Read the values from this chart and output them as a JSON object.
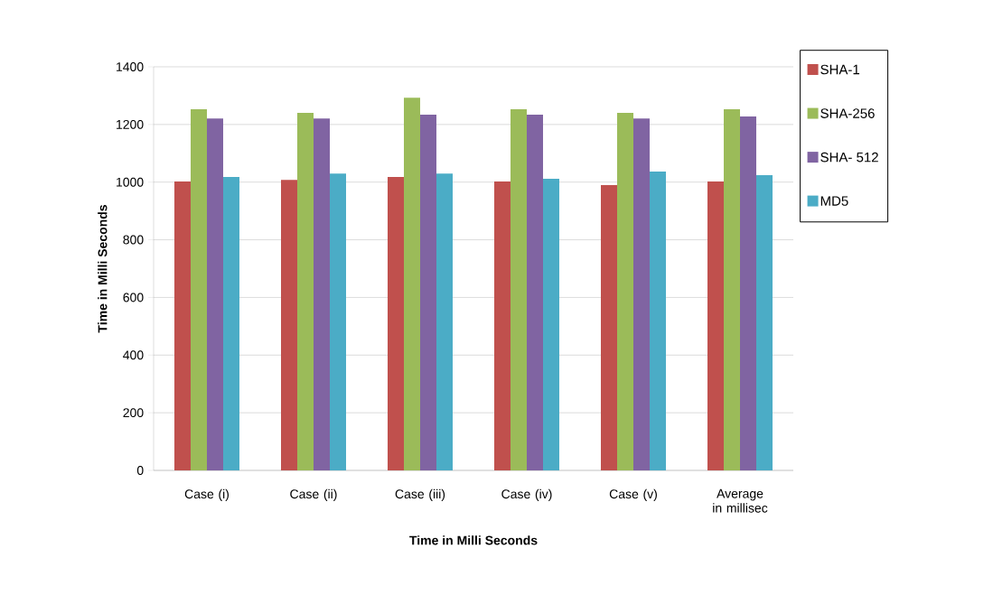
{
  "chart_data": {
    "type": "bar",
    "xlabel": "Time in Milli Seconds",
    "ylabel": "Time in Milli Seconds",
    "categories": [
      "Case (i)",
      "Case (ii)",
      "Case (iii)",
      "Case (iv)",
      "Case (v)",
      "Average in millisec"
    ],
    "series": [
      {
        "name": "SHA-1",
        "color": "#c0504d",
        "values": [
          1002,
          1008,
          1018,
          1002,
          990,
          1002
        ]
      },
      {
        "name": "SHA-256",
        "color": "#9bbb59",
        "values": [
          1253,
          1240,
          1293,
          1253,
          1240,
          1253
        ]
      },
      {
        "name": "SHA- 512",
        "color": "#8064a2",
        "values": [
          1221,
          1221,
          1234,
          1234,
          1221,
          1228
        ]
      },
      {
        "name": "MD5",
        "color": "#4bacc6",
        "values": [
          1018,
          1030,
          1030,
          1012,
          1037,
          1024
        ]
      }
    ],
    "ylim": [
      0,
      1400
    ],
    "yticks": [
      0,
      200,
      400,
      600,
      800,
      1000,
      1200,
      1400
    ],
    "grid": "y",
    "legend": "top right"
  }
}
